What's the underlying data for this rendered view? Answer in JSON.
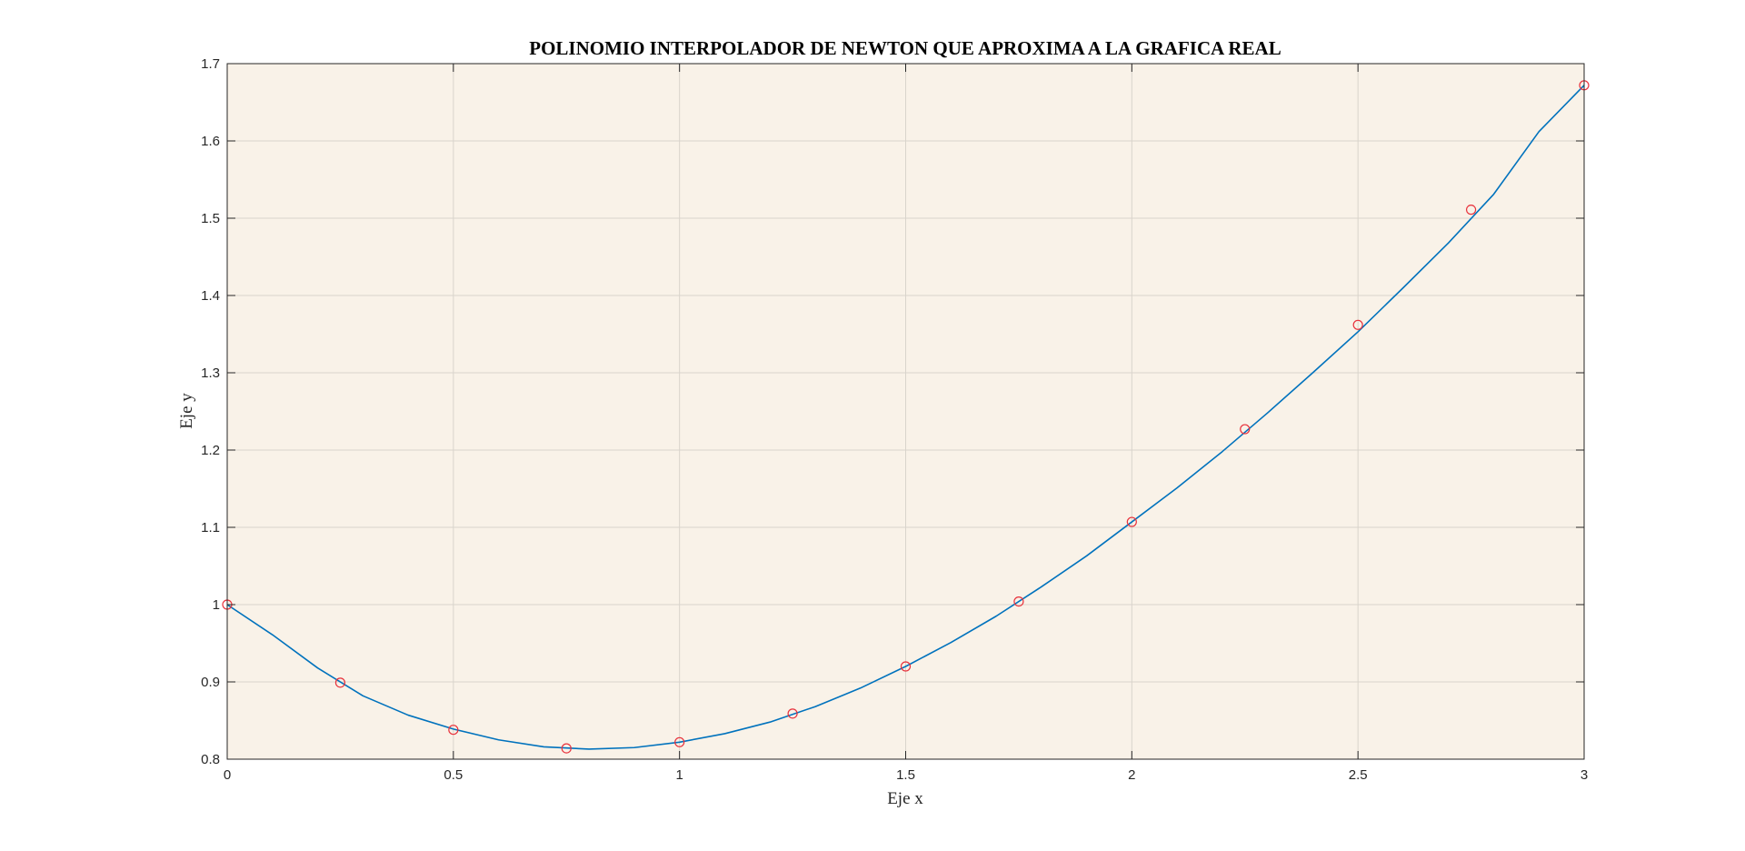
{
  "chart_data": {
    "type": "line",
    "title": "POLINOMIO INTERPOLADOR DE NEWTON QUE APROXIMA A LA GRAFICA REAL",
    "xlabel": "Eje x",
    "ylabel": "Eje y",
    "xlim": [
      0,
      3
    ],
    "ylim": [
      0.8,
      1.7
    ],
    "grid": true,
    "x_ticks": [
      "0",
      "0.5",
      "1",
      "1.5",
      "2",
      "2.5",
      "3"
    ],
    "y_ticks": [
      "0.8",
      "0.9",
      "1",
      "1.1",
      "1.2",
      "1.3",
      "1.4",
      "1.5",
      "1.6",
      "1.7"
    ],
    "series": [
      {
        "style": "line",
        "x": [
          0,
          0.1,
          0.2,
          0.3,
          0.4,
          0.5,
          0.6,
          0.7,
          0.8,
          0.9,
          1.0,
          1.1,
          1.2,
          1.3,
          1.4,
          1.5,
          1.6,
          1.7,
          1.8,
          1.9,
          2.0,
          2.1,
          2.2,
          2.3,
          2.4,
          2.5,
          2.6,
          2.7,
          2.8,
          2.9,
          3.0
        ],
        "y": [
          1.0,
          0.961,
          0.918,
          0.882,
          0.857,
          0.839,
          0.825,
          0.816,
          0.813,
          0.815,
          0.822,
          0.833,
          0.848,
          0.868,
          0.892,
          0.92,
          0.951,
          0.985,
          1.023,
          1.063,
          1.107,
          1.151,
          1.198,
          1.248,
          1.3,
          1.353,
          1.41,
          1.468,
          1.531,
          1.612,
          1.672
        ],
        "color": "#0072bd"
      },
      {
        "style": "markers",
        "marker": "circle-open",
        "x": [
          0,
          0.25,
          0.5,
          0.75,
          1.0,
          1.25,
          1.5,
          1.75,
          2.0,
          2.25,
          2.5,
          2.75,
          3.0
        ],
        "y": [
          1.0,
          0.899,
          0.838,
          0.814,
          0.822,
          0.859,
          0.92,
          1.004,
          1.107,
          1.227,
          1.362,
          1.511,
          1.672
        ],
        "color": "#e8323c"
      }
    ],
    "colors": {
      "plot_background": "#f9f2e8",
      "grid": "#d9d4cc",
      "axes": "#262626"
    }
  }
}
